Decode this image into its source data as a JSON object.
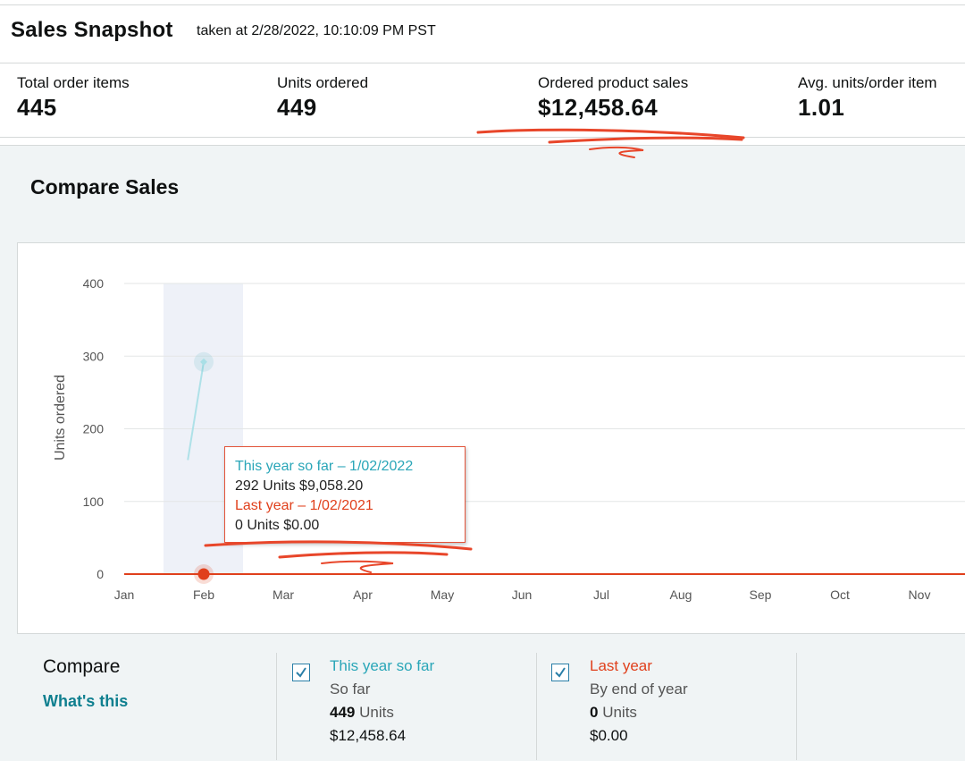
{
  "header": {
    "title": "Sales Snapshot",
    "subtitle": "taken at 2/28/2022, 10:10:09 PM PST"
  },
  "metrics": [
    {
      "label": "Total order items",
      "value": "445"
    },
    {
      "label": "Units ordered",
      "value": "449"
    },
    {
      "label": "Ordered product sales",
      "value": "$12,458.64"
    },
    {
      "label": "Avg. units/order item",
      "value": "1.01"
    }
  ],
  "compare_sales": {
    "title": "Compare Sales"
  },
  "chart_data": {
    "type": "line",
    "ylabel": "Units ordered",
    "xlabel": "",
    "ylim": [
      0,
      400
    ],
    "yticks": [
      "400",
      "300",
      "200",
      "100",
      "0"
    ],
    "categories": [
      "Jan",
      "Feb",
      "Mar",
      "Apr",
      "May",
      "Jun",
      "Jul",
      "Aug",
      "Sep",
      "Oct",
      "Nov"
    ],
    "grid": true,
    "highlight_category": "Feb",
    "series": [
      {
        "name": "This year so far",
        "color": "#2aa6b8",
        "x": [
          0.8,
          1.0
        ],
        "y": [
          157,
          292
        ]
      },
      {
        "name": "Last year",
        "color": "#e0401c",
        "x": [
          0,
          11
        ],
        "y": [
          0,
          0
        ]
      }
    ]
  },
  "tooltip": {
    "line1": "This year so far – 1/02/2022",
    "line2": "292 Units $9,058.20",
    "line3": "Last year – 1/02/2021",
    "line4": "0 Units $0.00"
  },
  "legend": {
    "compare_label": "Compare",
    "whats_this": "What's this",
    "this_year": {
      "title": "This year so far",
      "period": "So far",
      "units_value": "449",
      "units_suffix": " Units",
      "sales": "$12,458.64"
    },
    "last_year": {
      "title": "Last year",
      "period": "By end of year",
      "units_value": "0",
      "units_suffix": " Units",
      "sales": "$0.00"
    }
  },
  "colors": {
    "teal": "#2aa6b8",
    "red": "#e0401c",
    "panel": "#f0f4f5",
    "link": "#0f7f8f",
    "annotation": "#e8462a"
  }
}
